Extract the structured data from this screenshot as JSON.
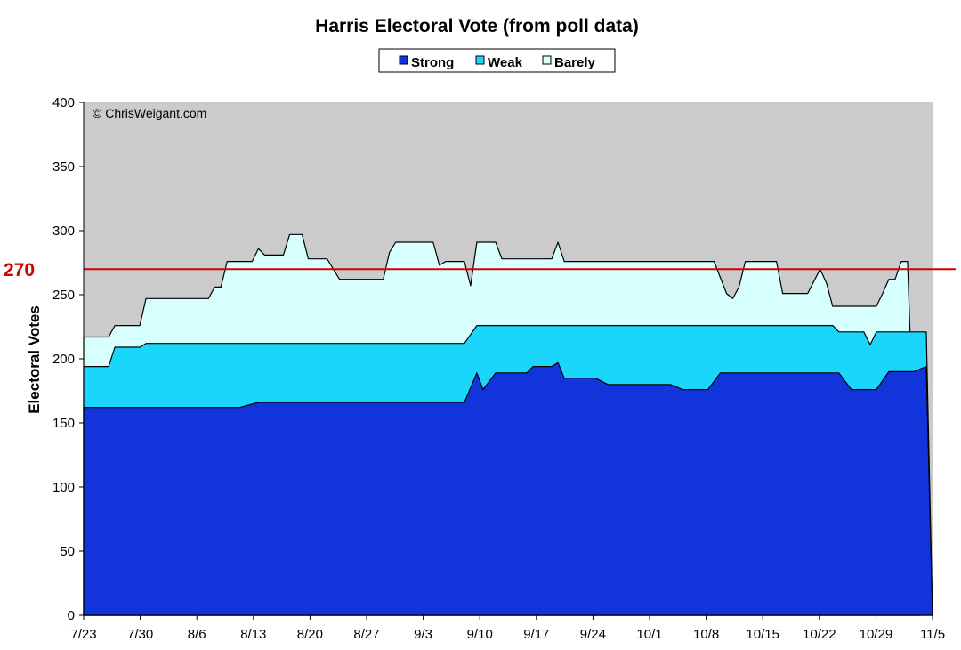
{
  "chart_data": {
    "type": "area",
    "title": "Harris Electoral Vote (from poll data)",
    "xlabel": "",
    "ylabel": "Electoral Votes",
    "ylim": [
      0,
      400
    ],
    "yticks": [
      "0",
      "50",
      "100",
      "150",
      "200",
      "250",
      "300",
      "350",
      "400"
    ],
    "xticks": [
      "7/23",
      "7/30",
      "8/6",
      "8/13",
      "8/20",
      "8/27",
      "9/3",
      "9/10",
      "9/17",
      "9/24",
      "10/1",
      "10/8",
      "10/15",
      "10/22",
      "10/29",
      "11/5"
    ],
    "x_start": "7/23",
    "x_end": "11/5",
    "grid": false,
    "stacked": true,
    "legend_position": "top",
    "copyright": "© ChrisWeigant.com",
    "reference_line": {
      "value": 270,
      "label": "270",
      "color": "#d40000"
    },
    "colors": {
      "plot_bg": "#cbcbcb",
      "Strong": "#1134db",
      "Weak": "#1ad6fa",
      "Barely": "#d6fffe"
    },
    "series": [
      {
        "name": "Strong",
        "points": [
          [
            0,
            162
          ],
          [
            25,
            162
          ],
          [
            28,
            166
          ],
          [
            61,
            166
          ],
          [
            63,
            189
          ],
          [
            64,
            176
          ],
          [
            66,
            189
          ],
          [
            71,
            189
          ],
          [
            72,
            194
          ],
          [
            75,
            194
          ],
          [
            76,
            197
          ],
          [
            77,
            185
          ],
          [
            82,
            185
          ],
          [
            84,
            180
          ],
          [
            94,
            180
          ],
          [
            96,
            176
          ],
          [
            100,
            176
          ],
          [
            102,
            189
          ],
          [
            121,
            189
          ],
          [
            123,
            176
          ],
          [
            127,
            176
          ],
          [
            129,
            190
          ],
          [
            133,
            190
          ],
          [
            135,
            194
          ],
          [
            136,
            0
          ]
        ]
      },
      {
        "name": "Weak",
        "points": [
          [
            0,
            194
          ],
          [
            4,
            194
          ],
          [
            5,
            209
          ],
          [
            9,
            209
          ],
          [
            10,
            212
          ],
          [
            61,
            212
          ],
          [
            63,
            226
          ],
          [
            120,
            226
          ],
          [
            121,
            221
          ],
          [
            125,
            221
          ],
          [
            126,
            211
          ],
          [
            127,
            221
          ],
          [
            135,
            221
          ],
          [
            136,
            0
          ]
        ]
      },
      {
        "name": "Barely",
        "points": [
          [
            0,
            217
          ],
          [
            4,
            217
          ],
          [
            5,
            226
          ],
          [
            9,
            226
          ],
          [
            10,
            247
          ],
          [
            20,
            247
          ],
          [
            21,
            256
          ],
          [
            22,
            256
          ],
          [
            23,
            276
          ],
          [
            27,
            276
          ],
          [
            28,
            286
          ],
          [
            29,
            281
          ],
          [
            32,
            281
          ],
          [
            33,
            297
          ],
          [
            35,
            297
          ],
          [
            36,
            278
          ],
          [
            39,
            278
          ],
          [
            41,
            262
          ],
          [
            48,
            262
          ],
          [
            49,
            283
          ],
          [
            50,
            291
          ],
          [
            56,
            291
          ],
          [
            57,
            273
          ],
          [
            58,
            276
          ],
          [
            61,
            276
          ],
          [
            62,
            257
          ],
          [
            63,
            291
          ],
          [
            66,
            291
          ],
          [
            67,
            278
          ],
          [
            75,
            278
          ],
          [
            76,
            291
          ],
          [
            77,
            276
          ],
          [
            101,
            276
          ],
          [
            103,
            251
          ],
          [
            104,
            247
          ],
          [
            105,
            256
          ],
          [
            106,
            276
          ],
          [
            111,
            276
          ],
          [
            112,
            251
          ],
          [
            116,
            251
          ],
          [
            118,
            270
          ],
          [
            119,
            259
          ],
          [
            120,
            241
          ],
          [
            127,
            241
          ],
          [
            128,
            251
          ],
          [
            129,
            262
          ],
          [
            130,
            262
          ],
          [
            131,
            276
          ],
          [
            132,
            276
          ],
          [
            134,
            0
          ]
        ]
      }
    ]
  }
}
